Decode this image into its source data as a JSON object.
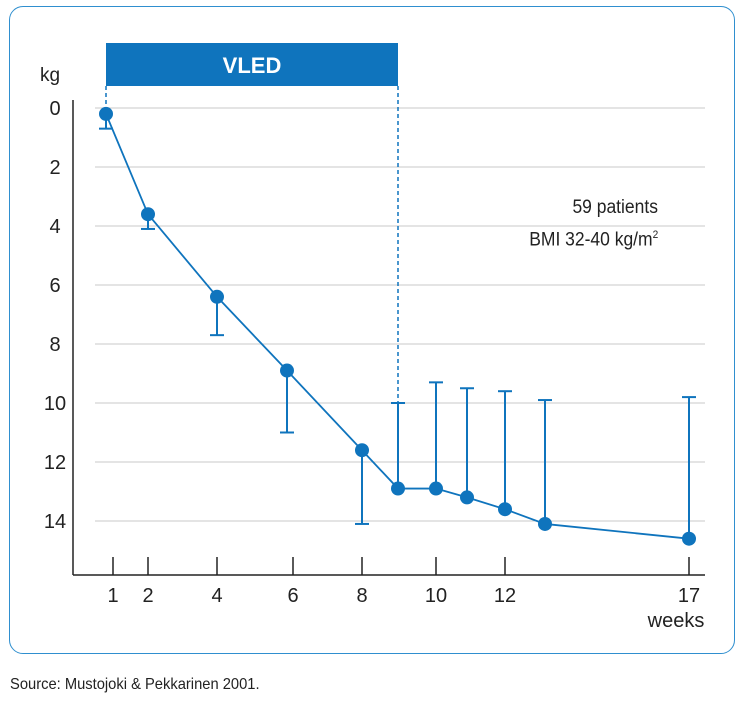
{
  "chart_data": {
    "type": "line",
    "yunit": "kg",
    "xunit": "weeks",
    "y_ticks": [
      0,
      2,
      4,
      6,
      8,
      10,
      12,
      14
    ],
    "x_ticks": [
      1,
      2,
      4,
      6,
      8,
      10,
      12,
      17
    ],
    "ylim": [
      0,
      15.8
    ],
    "y_inverted": true,
    "phase_label": "VLED",
    "phase_range": [
      0.8,
      9
    ],
    "points": [
      {
        "x": 0.8,
        "y": 0.2,
        "lo": 0.2,
        "hi": 0.7
      },
      {
        "x": 2,
        "y": 3.6,
        "lo": 3.6,
        "hi": 4.1
      },
      {
        "x": 4,
        "y": 6.4,
        "lo": 6.4,
        "hi": 7.7
      },
      {
        "x": 5.8,
        "y": 8.9,
        "lo": 8.9,
        "hi": 11.0
      },
      {
        "x": 8,
        "y": 11.6,
        "lo": 11.6,
        "hi": 14.1
      },
      {
        "x": 9,
        "y": 12.9,
        "lo": 10.0,
        "hi": 12.9
      },
      {
        "x": 10,
        "y": 12.9,
        "lo": 9.3,
        "hi": 12.9
      },
      {
        "x": 10.9,
        "y": 13.2,
        "lo": 9.5,
        "hi": 13.2
      },
      {
        "x": 12,
        "y": 13.6,
        "lo": 9.6,
        "hi": 13.6
      },
      {
        "x": 13.2,
        "y": 14.1,
        "lo": 9.9,
        "hi": 14.1
      },
      {
        "x": 17,
        "y": 14.6,
        "lo": 9.8,
        "hi": 14.6
      }
    ],
    "annotations": [
      "59 patients",
      "BMI 32-40 kg/m",
      "2"
    ],
    "color": "#0f74bd"
  },
  "source": "Source: Mustojoki & Pekkarinen 2001."
}
